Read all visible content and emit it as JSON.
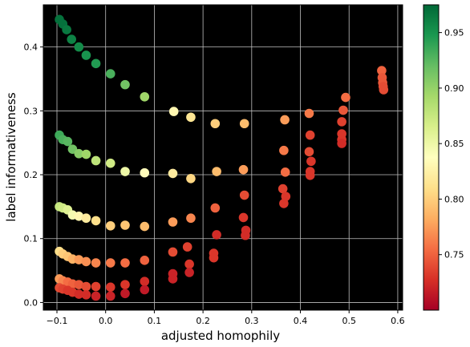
{
  "chart_data": {
    "type": "scatter",
    "xlabel": "adjusted homophily",
    "ylabel": "label informativeness",
    "xlim": [
      -0.128,
      0.61
    ],
    "ylim": [
      -0.012,
      0.466
    ],
    "xticks": [
      -0.1,
      0.0,
      0.1,
      0.2,
      0.3,
      0.4,
      0.5,
      0.6
    ],
    "xtick_labels": [
      "−0.1",
      "0.0",
      "0.1",
      "0.2",
      "0.3",
      "0.4",
      "0.5",
      "0.6"
    ],
    "yticks": [
      0.0,
      0.1,
      0.2,
      0.3,
      0.4
    ],
    "ytick_labels": [
      "0.0",
      "0.1",
      "0.2",
      "0.3",
      "0.4"
    ],
    "grid": true,
    "background": "#000000",
    "grid_color": "#bfbfbf",
    "colormap": "RdYlGn",
    "colorbar": {
      "range": [
        0.7,
        0.975
      ],
      "ticks": [
        0.75,
        0.8,
        0.85,
        0.9,
        0.95
      ],
      "tick_labels": [
        "0.75",
        "0.80",
        "0.85",
        "0.90",
        "0.95"
      ]
    },
    "points": [
      {
        "x": -0.095,
        "y": 0.443,
        "c": 0.97
      },
      {
        "x": -0.088,
        "y": 0.436,
        "c": 0.97
      },
      {
        "x": -0.08,
        "y": 0.427,
        "c": 0.965
      },
      {
        "x": -0.07,
        "y": 0.412,
        "c": 0.96
      },
      {
        "x": -0.055,
        "y": 0.4,
        "c": 0.955
      },
      {
        "x": -0.04,
        "y": 0.387,
        "c": 0.95
      },
      {
        "x": -0.02,
        "y": 0.374,
        "c": 0.945
      },
      {
        "x": 0.01,
        "y": 0.358,
        "c": 0.93
      },
      {
        "x": 0.04,
        "y": 0.341,
        "c": 0.915
      },
      {
        "x": 0.08,
        "y": 0.322,
        "c": 0.895
      },
      {
        "x": 0.14,
        "y": 0.299,
        "c": 0.83
      },
      {
        "x": 0.175,
        "y": 0.29,
        "c": 0.815
      },
      {
        "x": 0.225,
        "y": 0.28,
        "c": 0.8
      },
      {
        "x": 0.285,
        "y": 0.28,
        "c": 0.79
      },
      {
        "x": 0.368,
        "y": 0.286,
        "c": 0.775
      },
      {
        "x": 0.418,
        "y": 0.296,
        "c": 0.76
      },
      {
        "x": 0.488,
        "y": 0.301,
        "c": 0.745
      },
      {
        "x": 0.493,
        "y": 0.321,
        "c": 0.755
      },
      {
        "x": 0.567,
        "y": 0.363,
        "c": 0.75
      },
      {
        "x": 0.568,
        "y": 0.352,
        "c": 0.745
      },
      {
        "x": 0.569,
        "y": 0.344,
        "c": 0.745
      },
      {
        "x": 0.57,
        "y": 0.338,
        "c": 0.74
      },
      {
        "x": 0.571,
        "y": 0.333,
        "c": 0.74
      },
      {
        "x": -0.095,
        "y": 0.262,
        "c": 0.935
      },
      {
        "x": -0.088,
        "y": 0.255,
        "c": 0.93
      },
      {
        "x": -0.078,
        "y": 0.252,
        "c": 0.925
      },
      {
        "x": -0.068,
        "y": 0.24,
        "c": 0.915
      },
      {
        "x": -0.055,
        "y": 0.233,
        "c": 0.905
      },
      {
        "x": -0.04,
        "y": 0.232,
        "c": 0.895
      },
      {
        "x": -0.02,
        "y": 0.222,
        "c": 0.88
      },
      {
        "x": 0.01,
        "y": 0.218,
        "c": 0.87
      },
      {
        "x": 0.04,
        "y": 0.205,
        "c": 0.85
      },
      {
        "x": 0.08,
        "y": 0.203,
        "c": 0.835
      },
      {
        "x": 0.138,
        "y": 0.202,
        "c": 0.82
      },
      {
        "x": 0.175,
        "y": 0.194,
        "c": 0.805
      },
      {
        "x": 0.228,
        "y": 0.205,
        "c": 0.79
      },
      {
        "x": 0.283,
        "y": 0.208,
        "c": 0.775
      },
      {
        "x": 0.366,
        "y": 0.238,
        "c": 0.76
      },
      {
        "x": 0.369,
        "y": 0.204,
        "c": 0.755
      },
      {
        "x": 0.418,
        "y": 0.236,
        "c": 0.74
      },
      {
        "x": 0.42,
        "y": 0.262,
        "c": 0.735
      },
      {
        "x": 0.422,
        "y": 0.221,
        "c": 0.73
      },
      {
        "x": 0.42,
        "y": 0.205,
        "c": 0.73
      },
      {
        "x": 0.42,
        "y": 0.199,
        "c": 0.73
      },
      {
        "x": 0.485,
        "y": 0.283,
        "c": 0.735
      },
      {
        "x": 0.485,
        "y": 0.264,
        "c": 0.73
      },
      {
        "x": 0.485,
        "y": 0.255,
        "c": 0.73
      },
      {
        "x": 0.485,
        "y": 0.249,
        "c": 0.725
      },
      {
        "x": -0.095,
        "y": 0.15,
        "c": 0.875
      },
      {
        "x": -0.088,
        "y": 0.148,
        "c": 0.87
      },
      {
        "x": -0.078,
        "y": 0.145,
        "c": 0.86
      },
      {
        "x": -0.068,
        "y": 0.137,
        "c": 0.845
      },
      {
        "x": -0.055,
        "y": 0.135,
        "c": 0.83
      },
      {
        "x": -0.04,
        "y": 0.132,
        "c": 0.82
      },
      {
        "x": -0.02,
        "y": 0.128,
        "c": 0.81
      },
      {
        "x": 0.01,
        "y": 0.12,
        "c": 0.8
      },
      {
        "x": 0.04,
        "y": 0.121,
        "c": 0.795
      },
      {
        "x": 0.08,
        "y": 0.119,
        "c": 0.79
      },
      {
        "x": 0.138,
        "y": 0.126,
        "c": 0.775
      },
      {
        "x": 0.175,
        "y": 0.132,
        "c": 0.765
      },
      {
        "x": 0.225,
        "y": 0.148,
        "c": 0.75
      },
      {
        "x": 0.285,
        "y": 0.168,
        "c": 0.74
      },
      {
        "x": 0.364,
        "y": 0.178,
        "c": 0.735
      },
      {
        "x": 0.37,
        "y": 0.166,
        "c": 0.73
      },
      {
        "x": 0.366,
        "y": 0.155,
        "c": 0.73
      },
      {
        "x": 0.283,
        "y": 0.133,
        "c": 0.73
      },
      {
        "x": 0.288,
        "y": 0.113,
        "c": 0.725
      },
      {
        "x": 0.287,
        "y": 0.105,
        "c": 0.725
      },
      {
        "x": 0.228,
        "y": 0.106,
        "c": 0.725
      },
      {
        "x": -0.095,
        "y": 0.08,
        "c": 0.81
      },
      {
        "x": -0.088,
        "y": 0.076,
        "c": 0.8
      },
      {
        "x": -0.078,
        "y": 0.072,
        "c": 0.795
      },
      {
        "x": -0.068,
        "y": 0.068,
        "c": 0.785
      },
      {
        "x": -0.055,
        "y": 0.067,
        "c": 0.775
      },
      {
        "x": -0.04,
        "y": 0.064,
        "c": 0.77
      },
      {
        "x": -0.02,
        "y": 0.062,
        "c": 0.765
      },
      {
        "x": 0.01,
        "y": 0.062,
        "c": 0.76
      },
      {
        "x": 0.04,
        "y": 0.062,
        "c": 0.755
      },
      {
        "x": 0.08,
        "y": 0.066,
        "c": 0.75
      },
      {
        "x": 0.138,
        "y": 0.079,
        "c": 0.74
      },
      {
        "x": 0.168,
        "y": 0.087,
        "c": 0.735
      },
      {
        "x": 0.222,
        "y": 0.077,
        "c": 0.73
      },
      {
        "x": 0.222,
        "y": 0.07,
        "c": 0.73
      },
      {
        "x": 0.172,
        "y": 0.06,
        "c": 0.73
      },
      {
        "x": -0.095,
        "y": 0.037,
        "c": 0.775
      },
      {
        "x": -0.088,
        "y": 0.034,
        "c": 0.765
      },
      {
        "x": -0.078,
        "y": 0.032,
        "c": 0.755
      },
      {
        "x": -0.068,
        "y": 0.029,
        "c": 0.75
      },
      {
        "x": -0.055,
        "y": 0.028,
        "c": 0.745
      },
      {
        "x": -0.04,
        "y": 0.025,
        "c": 0.74
      },
      {
        "x": -0.02,
        "y": 0.025,
        "c": 0.735
      },
      {
        "x": 0.01,
        "y": 0.024,
        "c": 0.73
      },
      {
        "x": 0.04,
        "y": 0.028,
        "c": 0.73
      },
      {
        "x": 0.08,
        "y": 0.033,
        "c": 0.725
      },
      {
        "x": 0.138,
        "y": 0.045,
        "c": 0.72
      },
      {
        "x": 0.138,
        "y": 0.037,
        "c": 0.72
      },
      {
        "x": 0.172,
        "y": 0.047,
        "c": 0.72
      },
      {
        "x": -0.095,
        "y": 0.023,
        "c": 0.74
      },
      {
        "x": -0.088,
        "y": 0.021,
        "c": 0.735
      },
      {
        "x": -0.078,
        "y": 0.019,
        "c": 0.73
      },
      {
        "x": -0.068,
        "y": 0.016,
        "c": 0.73
      },
      {
        "x": -0.055,
        "y": 0.013,
        "c": 0.725
      },
      {
        "x": -0.04,
        "y": 0.012,
        "c": 0.725
      },
      {
        "x": -0.02,
        "y": 0.01,
        "c": 0.72
      },
      {
        "x": 0.01,
        "y": 0.01,
        "c": 0.72
      },
      {
        "x": 0.04,
        "y": 0.014,
        "c": 0.715
      },
      {
        "x": 0.08,
        "y": 0.02,
        "c": 0.715
      }
    ]
  }
}
